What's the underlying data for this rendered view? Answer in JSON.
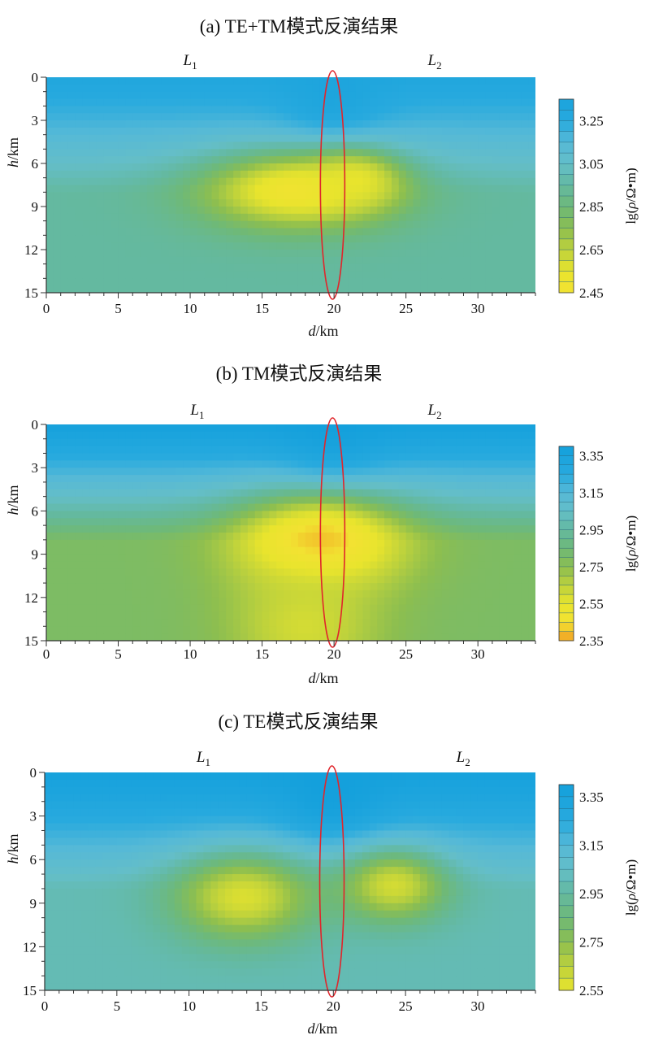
{
  "chart_data": [
    {
      "type": "heatmap",
      "title": "(a) TE+TM模式反演结果",
      "xlabel_var": "d",
      "xlabel_unit": "/km",
      "ylabel_var": "h",
      "ylabel_unit": "/km",
      "xlim": [
        0,
        34
      ],
      "ylim": [
        15,
        0
      ],
      "xticks": [
        "0",
        "5",
        "10",
        "15",
        "20",
        "25",
        "30"
      ],
      "yticks": [
        "0",
        "3",
        "6",
        "9",
        "12",
        "15"
      ],
      "region_labels": [
        {
          "main": "L",
          "sub": "1",
          "x": 10
        },
        {
          "main": "L",
          "sub": "2",
          "x": 27
        }
      ],
      "fault_x": 19.9,
      "colorbar": {
        "label_prefix": "lg(",
        "label_rho": "ρ",
        "label_suffix": "/Ω•m)",
        "range": [
          2.45,
          3.35
        ],
        "ticks": [
          "3.25",
          "3.05",
          "2.85",
          "2.65",
          "2.45"
        ]
      },
      "anomalies": [
        {
          "x": 17.5,
          "y": 7.9,
          "rx": 7.5,
          "ry": 3.0,
          "value": 2.47
        },
        {
          "x": 21.5,
          "y": 7.2,
          "rx": 3.5,
          "ry": 2.2,
          "value": 2.55
        }
      ],
      "background": {
        "top_value": 3.3,
        "bottom_value": 2.95
      }
    },
    {
      "type": "heatmap",
      "title": "(b) TM模式反演结果",
      "xlabel_var": "d",
      "xlabel_unit": "/km",
      "ylabel_var": "h",
      "ylabel_unit": "/km",
      "xlim": [
        0,
        34
      ],
      "ylim": [
        15,
        0
      ],
      "xticks": [
        "0",
        "5",
        "10",
        "15",
        "20",
        "25",
        "30"
      ],
      "yticks": [
        "0",
        "3",
        "6",
        "9",
        "12",
        "15"
      ],
      "region_labels": [
        {
          "main": "L",
          "sub": "1",
          "x": 10.5
        },
        {
          "main": "L",
          "sub": "2",
          "x": 27
        }
      ],
      "fault_x": 19.9,
      "colorbar": {
        "label_prefix": "lg(",
        "label_rho": "ρ",
        "label_suffix": "/Ω•m)",
        "range": [
          2.35,
          3.4
        ],
        "ticks": [
          "3.35",
          "3.15",
          "2.95",
          "2.75",
          "2.55",
          "2.35"
        ]
      },
      "anomalies": [
        {
          "x": 19.0,
          "y": 8.2,
          "rx": 6.5,
          "ry": 3.6,
          "value": 2.37
        },
        {
          "x": 18.0,
          "y": 14.0,
          "rx": 6.0,
          "ry": 5.0,
          "value": 2.6
        }
      ],
      "background": {
        "top_value": 3.38,
        "bottom_value": 2.8
      }
    },
    {
      "type": "heatmap",
      "title": "(c) TE模式反演结果",
      "xlabel_var": "d",
      "xlabel_unit": "/km",
      "ylabel_var": "h",
      "ylabel_unit": "/km",
      "xlim": [
        0,
        34
      ],
      "ylim": [
        15,
        0
      ],
      "xticks": [
        "0",
        "5",
        "10",
        "15",
        "20",
        "25",
        "30"
      ],
      "yticks": [
        "0",
        "3",
        "6",
        "9",
        "12",
        "15"
      ],
      "region_labels": [
        {
          "main": "L",
          "sub": "1",
          "x": 11
        },
        {
          "main": "L",
          "sub": "2",
          "x": 29
        }
      ],
      "fault_x": 19.9,
      "colorbar": {
        "label_prefix": "lg(",
        "label_rho": "ρ",
        "label_suffix": "/Ω•m)",
        "range": [
          2.55,
          3.4
        ],
        "ticks": [
          "3.35",
          "3.15",
          "2.95",
          "2.75",
          "2.55"
        ]
      },
      "anomalies": [
        {
          "x": 13.8,
          "y": 8.6,
          "rx": 5.5,
          "ry": 3.4,
          "value": 2.58
        },
        {
          "x": 24.2,
          "y": 7.8,
          "rx": 4.2,
          "ry": 2.8,
          "value": 2.6
        }
      ],
      "background": {
        "top_value": 3.38,
        "bottom_value": 3.0
      }
    }
  ]
}
